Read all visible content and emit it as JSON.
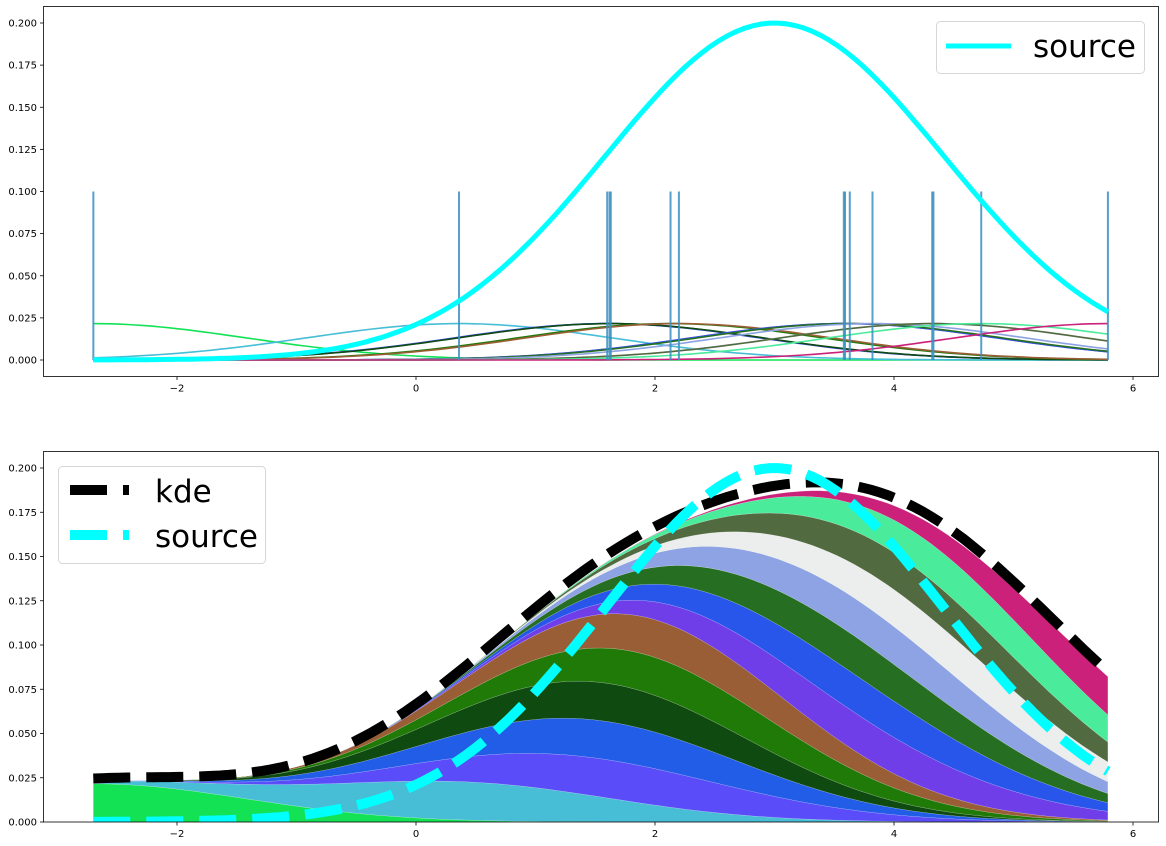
{
  "chart_data": [
    {
      "type": "line",
      "panel": "top",
      "title": "",
      "xlabel": "",
      "ylabel": "",
      "xlim": [
        -3.1,
        6.2
      ],
      "ylim": [
        -0.01,
        0.21
      ],
      "x_ticks": [
        -2,
        0,
        2,
        4,
        6
      ],
      "x_tick_labels": [
        "−2",
        "0",
        "2",
        "4",
        "6"
      ],
      "y_ticks": [
        0.0,
        0.025,
        0.05,
        0.075,
        0.1,
        0.125,
        0.15,
        0.175,
        0.2
      ],
      "y_tick_labels": [
        "0.000",
        "0.025",
        "0.050",
        "0.075",
        "0.100",
        "0.125",
        "0.150",
        "0.175",
        "0.200"
      ],
      "grid": false,
      "legend": {
        "position": "upper right",
        "entries": [
          {
            "label": "source",
            "color": "#00ffff",
            "style": "solid"
          }
        ]
      },
      "source_curve": {
        "label": "source",
        "color": "#00ffff",
        "type": "gaussian",
        "amplitude": 0.2,
        "mean": 3.0,
        "denominator": 4.0,
        "peak": {
          "x": 3.0,
          "y": 0.1995
        }
      },
      "rug": {
        "height": 0.1,
        "color": "#3a8fc0",
        "positions": [
          -2.7,
          0.36,
          1.6,
          1.62,
          1.63,
          2.13,
          2.2,
          3.58,
          3.59,
          3.63,
          3.82,
          4.32,
          4.33,
          4.73,
          5.79
        ]
      },
      "kernels": {
        "amplitude": 0.0216,
        "bandwidth": 1.28,
        "x_range": [
          -2.7,
          5.79
        ]
      }
    },
    {
      "type": "area",
      "panel": "bottom",
      "stacked": true,
      "title": "",
      "xlabel": "",
      "ylabel": "",
      "xlim": [
        -3.1,
        6.2
      ],
      "ylim": [
        0.0,
        0.21
      ],
      "x_ticks": [
        -2,
        0,
        2,
        4,
        6
      ],
      "x_tick_labels": [
        "−2",
        "0",
        "2",
        "4",
        "6"
      ],
      "y_ticks": [
        0.0,
        0.025,
        0.05,
        0.075,
        0.1,
        0.125,
        0.15,
        0.175,
        0.2
      ],
      "y_tick_labels": [
        "0.000",
        "0.025",
        "0.050",
        "0.075",
        "0.100",
        "0.125",
        "0.150",
        "0.175",
        "0.200"
      ],
      "grid": false,
      "legend": {
        "position": "upper left",
        "entries": [
          {
            "label": "kde",
            "color": "#000000",
            "style": "dashed"
          },
          {
            "label": "source",
            "color": "#00ffff",
            "style": "dashed"
          }
        ]
      },
      "series": [
        {
          "center": -2.7,
          "color": "#13e255"
        },
        {
          "center": 0.36,
          "color": "#48bed6"
        },
        {
          "center": 1.6,
          "color": "#5a4cf8"
        },
        {
          "center": 1.62,
          "color": "#225de8"
        },
        {
          "center": 1.63,
          "color": "#0f4a10"
        },
        {
          "center": 2.13,
          "color": "#1f7a08"
        },
        {
          "center": 2.2,
          "color": "#9a5e36"
        },
        {
          "center": 3.58,
          "color": "#6f3ee8"
        },
        {
          "center": 3.59,
          "color": "#2856ea"
        },
        {
          "center": 3.63,
          "color": "#266f22"
        },
        {
          "center": 3.82,
          "color": "#8ea3e3"
        },
        {
          "center": 4.32,
          "color": "#eceeed"
        },
        {
          "center": 4.33,
          "color": "#526a40"
        },
        {
          "center": 4.73,
          "color": "#4aeb9a"
        },
        {
          "center": 5.79,
          "color": "#cb217a"
        }
      ],
      "kde_curve": {
        "label": "kde",
        "color": "#000000",
        "peak": {
          "x": 3.8,
          "y": 0.195
        },
        "end_value": 0.09
      },
      "source_curve": {
        "label": "source",
        "color": "#00ffff",
        "peak": {
          "x": 3.0,
          "y": 0.1995
        }
      }
    }
  ],
  "legends": {
    "top": {
      "source": "source"
    },
    "bottom": {
      "kde": "kde",
      "source": "source"
    }
  }
}
